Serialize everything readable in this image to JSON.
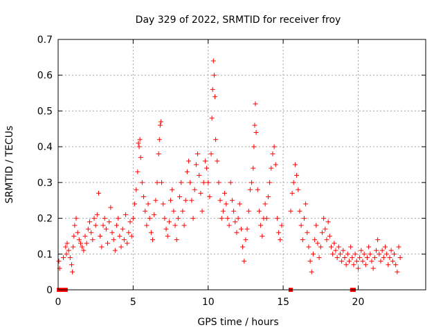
{
  "chart_data": {
    "type": "scatter",
    "title": "Day 329 of 2022, SRMTID for receiver froy",
    "xlabel": "GPS time / hours",
    "ylabel": "SRMTID / TECUs",
    "xlim": [
      0,
      24.5
    ],
    "ylim": [
      0,
      0.7
    ],
    "xticks": [
      "0",
      "5",
      "10",
      "15",
      "20"
    ],
    "yticks": [
      "0",
      "0.1",
      "0.2",
      "0.3",
      "0.4",
      "0.5",
      "0.6",
      "0.7"
    ],
    "grid": true,
    "marker": "plus",
    "color": "#ff0000",
    "series": [
      {
        "name": "SRMTID",
        "points": [
          [
            0.05,
            0.08
          ],
          [
            0.1,
            0.06
          ],
          [
            0.35,
            0.09
          ],
          [
            0.5,
            0.12
          ],
          [
            0.55,
            0.1
          ],
          [
            0.6,
            0.13
          ],
          [
            0.7,
            0.11
          ],
          [
            0.8,
            0.09
          ],
          [
            0.9,
            0.07
          ],
          [
            0.95,
            0.05
          ],
          [
            1.0,
            0.12
          ],
          [
            1.05,
            0.15
          ],
          [
            1.1,
            0.18
          ],
          [
            1.2,
            0.2
          ],
          [
            1.3,
            0.16
          ],
          [
            1.4,
            0.14
          ],
          [
            1.5,
            0.13
          ],
          [
            1.6,
            0.12
          ],
          [
            1.7,
            0.11
          ],
          [
            1.8,
            0.15
          ],
          [
            1.9,
            0.13
          ],
          [
            2.0,
            0.17
          ],
          [
            2.1,
            0.19
          ],
          [
            2.2,
            0.16
          ],
          [
            2.3,
            0.14
          ],
          [
            2.4,
            0.2
          ],
          [
            2.5,
            0.18
          ],
          [
            2.6,
            0.21
          ],
          [
            2.7,
            0.27
          ],
          [
            2.8,
            0.15
          ],
          [
            2.9,
            0.12
          ],
          [
            3.0,
            0.18
          ],
          [
            3.1,
            0.2
          ],
          [
            3.2,
            0.17
          ],
          [
            3.3,
            0.13
          ],
          [
            3.4,
            0.19
          ],
          [
            3.5,
            0.23
          ],
          [
            3.6,
            0.16
          ],
          [
            3.7,
            0.14
          ],
          [
            3.8,
            0.11
          ],
          [
            3.9,
            0.18
          ],
          [
            4.0,
            0.2
          ],
          [
            4.1,
            0.15
          ],
          [
            4.2,
            0.12
          ],
          [
            4.3,
            0.17
          ],
          [
            4.4,
            0.14
          ],
          [
            4.5,
            0.21
          ],
          [
            4.6,
            0.13
          ],
          [
            4.7,
            0.16
          ],
          [
            4.8,
            0.19
          ],
          [
            4.9,
            0.15
          ],
          [
            5.0,
            0.2
          ],
          [
            5.1,
            0.24
          ],
          [
            5.2,
            0.28
          ],
          [
            5.3,
            0.33
          ],
          [
            5.35,
            0.41
          ],
          [
            5.4,
            0.4
          ],
          [
            5.45,
            0.42
          ],
          [
            5.5,
            0.37
          ],
          [
            5.6,
            0.3
          ],
          [
            5.7,
            0.26
          ],
          [
            5.8,
            0.22
          ],
          [
            5.9,
            0.18
          ],
          [
            6.0,
            0.24
          ],
          [
            6.1,
            0.2
          ],
          [
            6.2,
            0.16
          ],
          [
            6.3,
            0.14
          ],
          [
            6.4,
            0.21
          ],
          [
            6.5,
            0.25
          ],
          [
            6.6,
            0.3
          ],
          [
            6.7,
            0.38
          ],
          [
            6.75,
            0.42
          ],
          [
            6.8,
            0.46
          ],
          [
            6.85,
            0.47
          ],
          [
            6.9,
            0.3
          ],
          [
            7.0,
            0.24
          ],
          [
            7.1,
            0.2
          ],
          [
            7.2,
            0.17
          ],
          [
            7.3,
            0.15
          ],
          [
            7.4,
            0.19
          ],
          [
            7.5,
            0.25
          ],
          [
            7.6,
            0.28
          ],
          [
            7.7,
            0.22
          ],
          [
            7.8,
            0.18
          ],
          [
            7.9,
            0.14
          ],
          [
            8.0,
            0.2
          ],
          [
            8.1,
            0.26
          ],
          [
            8.2,
            0.3
          ],
          [
            8.3,
            0.22
          ],
          [
            8.4,
            0.18
          ],
          [
            8.5,
            0.25
          ],
          [
            8.6,
            0.33
          ],
          [
            8.7,
            0.36
          ],
          [
            8.8,
            0.3
          ],
          [
            8.9,
            0.25
          ],
          [
            9.0,
            0.2
          ],
          [
            9.1,
            0.28
          ],
          [
            9.2,
            0.35
          ],
          [
            9.3,
            0.38
          ],
          [
            9.4,
            0.32
          ],
          [
            9.5,
            0.27
          ],
          [
            9.6,
            0.22
          ],
          [
            9.7,
            0.3
          ],
          [
            9.8,
            0.36
          ],
          [
            9.9,
            0.34
          ],
          [
            10.0,
            0.3
          ],
          [
            10.1,
            0.26
          ],
          [
            10.2,
            0.38
          ],
          [
            10.25,
            0.48
          ],
          [
            10.3,
            0.56
          ],
          [
            10.35,
            0.64
          ],
          [
            10.4,
            0.6
          ],
          [
            10.45,
            0.54
          ],
          [
            10.5,
            0.42
          ],
          [
            10.6,
            0.36
          ],
          [
            10.7,
            0.3
          ],
          [
            10.8,
            0.25
          ],
          [
            10.9,
            0.2
          ],
          [
            11.0,
            0.22
          ],
          [
            11.1,
            0.27
          ],
          [
            11.2,
            0.24
          ],
          [
            11.3,
            0.2
          ],
          [
            11.4,
            0.18
          ],
          [
            11.5,
            0.3
          ],
          [
            11.6,
            0.25
          ],
          [
            11.7,
            0.22
          ],
          [
            11.8,
            0.19
          ],
          [
            11.9,
            0.16
          ],
          [
            12.0,
            0.2
          ],
          [
            12.1,
            0.24
          ],
          [
            12.2,
            0.17
          ],
          [
            12.3,
            0.12
          ],
          [
            12.4,
            0.08
          ],
          [
            12.5,
            0.14
          ],
          [
            12.6,
            0.17
          ],
          [
            12.7,
            0.22
          ],
          [
            12.8,
            0.28
          ],
          [
            12.9,
            0.3
          ],
          [
            13.0,
            0.34
          ],
          [
            13.05,
            0.4
          ],
          [
            13.1,
            0.46
          ],
          [
            13.15,
            0.52
          ],
          [
            13.2,
            0.44
          ],
          [
            13.3,
            0.28
          ],
          [
            13.4,
            0.22
          ],
          [
            13.5,
            0.18
          ],
          [
            13.6,
            0.15
          ],
          [
            13.7,
            0.2
          ],
          [
            13.8,
            0.24
          ],
          [
            13.9,
            0.2
          ],
          [
            14.0,
            0.26
          ],
          [
            14.1,
            0.3
          ],
          [
            14.2,
            0.34
          ],
          [
            14.3,
            0.38
          ],
          [
            14.4,
            0.4
          ],
          [
            14.5,
            0.35
          ],
          [
            14.6,
            0.2
          ],
          [
            14.7,
            0.16
          ],
          [
            14.8,
            0.14
          ],
          [
            14.9,
            0.18
          ],
          [
            15.5,
            0.22
          ],
          [
            15.6,
            0.27
          ],
          [
            15.7,
            0.3
          ],
          [
            15.8,
            0.35
          ],
          [
            15.9,
            0.32
          ],
          [
            16.0,
            0.28
          ],
          [
            16.1,
            0.22
          ],
          [
            16.2,
            0.18
          ],
          [
            16.3,
            0.14
          ],
          [
            16.4,
            0.2
          ],
          [
            16.5,
            0.24
          ],
          [
            16.6,
            0.16
          ],
          [
            16.7,
            0.12
          ],
          [
            16.8,
            0.08
          ],
          [
            16.9,
            0.05
          ],
          [
            17.0,
            0.1
          ],
          [
            17.1,
            0.14
          ],
          [
            17.2,
            0.18
          ],
          [
            17.3,
            0.13
          ],
          [
            17.4,
            0.09
          ],
          [
            17.5,
            0.12
          ],
          [
            17.6,
            0.16
          ],
          [
            17.7,
            0.2
          ],
          [
            17.8,
            0.17
          ],
          [
            17.9,
            0.14
          ],
          [
            18.0,
            0.19
          ],
          [
            18.1,
            0.15
          ],
          [
            18.2,
            0.12
          ],
          [
            18.3,
            0.1
          ],
          [
            18.4,
            0.13
          ],
          [
            18.5,
            0.11
          ],
          [
            18.6,
            0.09
          ],
          [
            18.7,
            0.12
          ],
          [
            18.8,
            0.1
          ],
          [
            18.9,
            0.08
          ],
          [
            19.0,
            0.11
          ],
          [
            19.1,
            0.09
          ],
          [
            19.2,
            0.07
          ],
          [
            19.3,
            0.1
          ],
          [
            19.4,
            0.08
          ],
          [
            19.5,
            0.12
          ],
          [
            19.6,
            0.09
          ],
          [
            19.7,
            0.07
          ],
          [
            19.8,
            0.1
          ],
          [
            19.9,
            0.08
          ],
          [
            20.0,
            0.06
          ],
          [
            20.1,
            0.09
          ],
          [
            20.2,
            0.11
          ],
          [
            20.3,
            0.08
          ],
          [
            20.4,
            0.1
          ],
          [
            20.5,
            0.07
          ],
          [
            20.6,
            0.09
          ],
          [
            20.7,
            0.12
          ],
          [
            20.8,
            0.1
          ],
          [
            20.9,
            0.08
          ],
          [
            21.0,
            0.06
          ],
          [
            21.1,
            0.09
          ],
          [
            21.2,
            0.11
          ],
          [
            21.3,
            0.14
          ],
          [
            21.4,
            0.1
          ],
          [
            21.5,
            0.08
          ],
          [
            21.6,
            0.11
          ],
          [
            21.7,
            0.09
          ],
          [
            21.8,
            0.12
          ],
          [
            21.9,
            0.1
          ],
          [
            22.0,
            0.07
          ],
          [
            22.1,
            0.09
          ],
          [
            22.2,
            0.11
          ],
          [
            22.3,
            0.08
          ],
          [
            22.4,
            0.1
          ],
          [
            22.5,
            0.07
          ],
          [
            22.6,
            0.05
          ],
          [
            22.7,
            0.12
          ],
          [
            22.8,
            0.09
          ]
        ]
      }
    ],
    "baseline_markers": [
      [
        0.05,
        0.0
      ],
      [
        0.15,
        0.0
      ],
      [
        0.25,
        0.0
      ],
      [
        0.35,
        0.0
      ],
      [
        0.5,
        0.0
      ],
      [
        15.5,
        0.0
      ],
      [
        19.6,
        0.0
      ],
      [
        19.7,
        0.0
      ]
    ]
  }
}
